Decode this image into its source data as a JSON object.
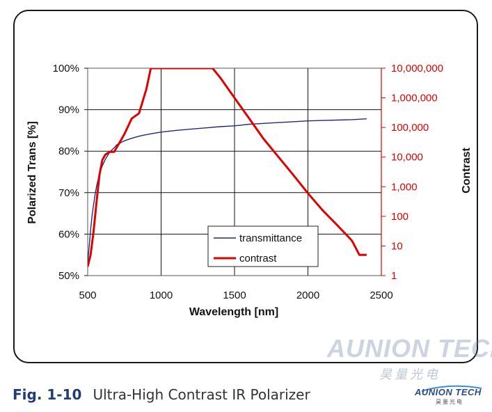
{
  "chart_data": {
    "type": "line",
    "xlabel": "Wavelength [nm]",
    "ylabel_left": "Polarized Trans [%]",
    "ylabel_right": "Contrast",
    "x_ticks": [
      "500",
      "1000",
      "1500",
      "2000",
      "2500"
    ],
    "y_left_ticks": [
      "50%",
      "60%",
      "70%",
      "80%",
      "90%",
      "100%"
    ],
    "y_right_ticks": [
      "1",
      "10",
      "100",
      "1,000",
      "10,000",
      "100,000",
      "1,000,000",
      "10,000,000"
    ],
    "xlim": [
      500,
      2500
    ],
    "ylim_left": [
      50,
      100
    ],
    "ylim_right": [
      1,
      10000000
    ],
    "y_right_scale": "log",
    "grid": true,
    "legend_position": "lower-right",
    "series": [
      {
        "name": "transmittance",
        "axis": "left",
        "color": "#1f2a7a",
        "x": [
          500,
          510,
          520,
          530,
          540,
          550,
          560,
          570,
          580,
          600,
          620,
          650,
          680,
          700,
          750,
          800,
          850,
          900,
          950,
          1000,
          1100,
          1200,
          1300,
          1400,
          1500,
          1550,
          1600,
          1650,
          1700,
          1800,
          1900,
          2000,
          2100,
          2200,
          2300,
          2350,
          2400
        ],
        "y": [
          53,
          57,
          61,
          64.5,
          67,
          69.5,
          71.5,
          73,
          74.5,
          76.5,
          78,
          79.8,
          80.8,
          81.6,
          82.5,
          83.1,
          83.6,
          84.0,
          84.3,
          84.6,
          85.0,
          85.3,
          85.6,
          85.9,
          86.1,
          86.3,
          86.5,
          86.6,
          86.7,
          86.9,
          87.1,
          87.3,
          87.4,
          87.5,
          87.6,
          87.7,
          87.8
        ]
      },
      {
        "name": "contrast",
        "axis": "right",
        "color": "#e00000",
        "x": [
          500,
          520,
          540,
          560,
          580,
          600,
          620,
          650,
          680,
          700,
          750,
          800,
          850,
          900,
          930,
          1350,
          1400,
          1500,
          1600,
          1700,
          1800,
          1900,
          2000,
          2100,
          2200,
          2300,
          2350,
          2400
        ],
        "y": [
          2,
          5,
          30,
          300,
          2500,
          8000,
          12000,
          15000,
          15000,
          22000,
          60000,
          200000,
          300000,
          2000000,
          10000000,
          10000000,
          5000000,
          1000000,
          200000,
          40000,
          10000,
          2500,
          600,
          160,
          50,
          15,
          5,
          5
        ]
      }
    ]
  },
  "caption": {
    "fig_number": "Fig. 1-10",
    "title": "Ultra-High Contrast IR Polarizer"
  },
  "watermark": {
    "name": "AUNION TECH",
    "chinese": "昊量光电"
  },
  "logo": {
    "name": "AUNION TECH",
    "chinese": "昊量光电"
  }
}
